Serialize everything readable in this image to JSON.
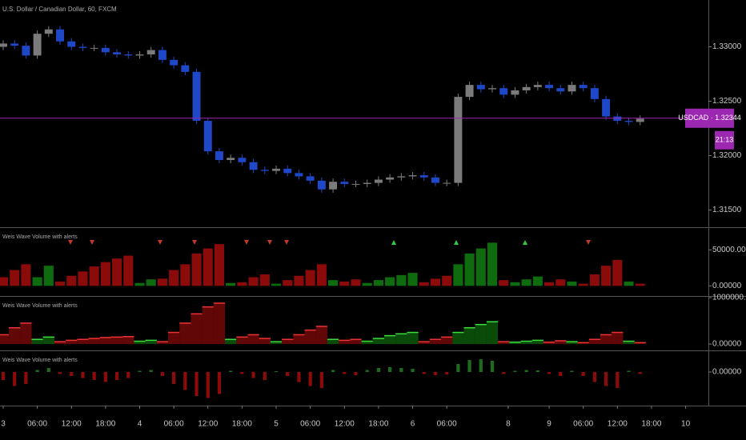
{
  "chart_data": [
    {
      "type": "candlestick",
      "title": "U.S. Dollar / Canadian Dollar, 60, FXCM",
      "up_color": "#7b7b7b",
      "down_color": "#1f48c8",
      "open": [
        1.33,
        1.3303,
        1.3301,
        1.3292,
        1.3312,
        1.3316,
        1.3305,
        1.33,
        1.3299,
        1.3299,
        1.3295,
        1.3293,
        1.3292,
        1.3293,
        1.3297,
        1.3288,
        1.3283,
        1.3277,
        1.3232,
        1.3204,
        1.3196,
        1.3198,
        1.3194,
        1.3187,
        1.3186,
        1.3188,
        1.3184,
        1.3181,
        1.3177,
        1.3169,
        1.3176,
        1.3174,
        1.3174,
        1.3175,
        1.3178,
        1.318,
        1.3181,
        1.3182,
        1.318,
        1.3175,
        1.3175,
        1.3254,
        1.3265,
        1.3261,
        1.3262,
        1.3256,
        1.326,
        1.3263,
        1.3265,
        1.3262,
        1.3259,
        1.3265,
        1.3262,
        1.3252,
        1.3236,
        1.3232,
        1.3231
      ],
      "high": [
        1.3306,
        1.3306,
        1.3304,
        1.3315,
        1.3319,
        1.3319,
        1.3308,
        1.3303,
        1.3302,
        1.3302,
        1.3298,
        1.3296,
        1.3296,
        1.33,
        1.33,
        1.3291,
        1.3286,
        1.328,
        1.3235,
        1.3207,
        1.3201,
        1.3201,
        1.3197,
        1.319,
        1.3191,
        1.3191,
        1.3187,
        1.3184,
        1.318,
        1.3179,
        1.3179,
        1.3177,
        1.3178,
        1.3181,
        1.3183,
        1.3184,
        1.3185,
        1.3185,
        1.3183,
        1.3178,
        1.3257,
        1.3268,
        1.3268,
        1.3265,
        1.3265,
        1.3263,
        1.3266,
        1.3268,
        1.3268,
        1.3265,
        1.3268,
        1.3268,
        1.3265,
        1.3255,
        1.3239,
        1.3235,
        1.3237
      ],
      "low": [
        1.3297,
        1.3298,
        1.3289,
        1.3289,
        1.3309,
        1.3302,
        1.3297,
        1.3296,
        1.3296,
        1.3292,
        1.329,
        1.3289,
        1.3289,
        1.329,
        1.3285,
        1.328,
        1.3274,
        1.3229,
        1.3201,
        1.3193,
        1.3193,
        1.3191,
        1.3184,
        1.3183,
        1.3183,
        1.3181,
        1.3178,
        1.3174,
        1.3166,
        1.3166,
        1.3171,
        1.3171,
        1.3171,
        1.3172,
        1.3175,
        1.3177,
        1.3178,
        1.3177,
        1.3172,
        1.3172,
        1.3172,
        1.3251,
        1.3258,
        1.3258,
        1.3253,
        1.3253,
        1.3257,
        1.326,
        1.3259,
        1.3256,
        1.3256,
        1.3259,
        1.3249,
        1.3233,
        1.3229,
        1.3228,
        1.3228
      ],
      "close": [
        1.3303,
        1.3301,
        1.3292,
        1.3312,
        1.3316,
        1.3305,
        1.33,
        1.3299,
        1.3299,
        1.3295,
        1.3293,
        1.3292,
        1.3293,
        1.3297,
        1.3288,
        1.3283,
        1.3277,
        1.3232,
        1.3204,
        1.3196,
        1.3198,
        1.3194,
        1.3187,
        1.3186,
        1.3188,
        1.3184,
        1.3181,
        1.3177,
        1.3169,
        1.3176,
        1.3174,
        1.3174,
        1.3175,
        1.3178,
        1.318,
        1.3181,
        1.3182,
        1.318,
        1.3175,
        1.3175,
        1.3254,
        1.3265,
        1.3261,
        1.3262,
        1.3256,
        1.326,
        1.3263,
        1.3265,
        1.3262,
        1.3259,
        1.3265,
        1.3262,
        1.3252,
        1.3236,
        1.3232,
        1.3231,
        1.3234
      ],
      "last_price": {
        "value": 1.32344,
        "label": "USDCAD · 1.32344"
      },
      "last_price_color": "#9c27b0",
      "countdown": "21:13",
      "ylim": [
        1.3135,
        1.3343
      ],
      "yticks": [
        {
          "value": 1.315,
          "label": "1.31500"
        },
        {
          "value": 1.32,
          "label": "1.32000"
        },
        {
          "value": 1.325,
          "label": "1.32500"
        },
        {
          "value": 1.33,
          "label": "1.33000"
        }
      ],
      "xlim": [
        -0.28,
        62
      ],
      "xticks": [
        {
          "value": 0,
          "label": "3"
        },
        {
          "value": 3,
          "label": "06:00"
        },
        {
          "value": 6,
          "label": "12:00"
        },
        {
          "value": 9,
          "label": "18:00"
        },
        {
          "value": 12,
          "label": "4"
        },
        {
          "value": 15,
          "label": "06:00"
        },
        {
          "value": 18,
          "label": "12:00"
        },
        {
          "value": 21,
          "label": "18:00"
        },
        {
          "value": 24,
          "label": "5"
        },
        {
          "value": 27,
          "label": "06:00"
        },
        {
          "value": 30,
          "label": "12:00"
        },
        {
          "value": 33,
          "label": "18:00"
        },
        {
          "value": 36,
          "label": "6"
        },
        {
          "value": 39,
          "label": "06:00"
        },
        {
          "value": 44.4,
          "label": "8"
        },
        {
          "value": 48,
          "label": "9"
        },
        {
          "value": 51,
          "label": "06:00"
        },
        {
          "value": 54,
          "label": "12:00"
        },
        {
          "value": 57,
          "label": "18:00"
        },
        {
          "value": 60,
          "label": "10"
        }
      ]
    },
    {
      "type": "bar",
      "title": "Weis Wave Volume with alerts",
      "values": [
        12000,
        22000,
        30000,
        12000,
        28000,
        6000,
        14000,
        20000,
        27000,
        33000,
        38000,
        42000,
        4000,
        9000,
        10000,
        22000,
        30000,
        45000,
        52000,
        58000,
        4000,
        5000,
        12000,
        16000,
        3000,
        8000,
        14000,
        22000,
        30000,
        8000,
        6000,
        9000,
        4000,
        8000,
        12000,
        15000,
        18000,
        5000,
        10000,
        14000,
        30000,
        45000,
        52000,
        60000,
        8000,
        5000,
        9000,
        13000,
        5000,
        9000,
        6000,
        3000,
        16000,
        28000,
        36000,
        6000,
        3000
      ],
      "colors": [
        "#8b0a0a",
        "#8b0a0a",
        "#8b0a0a",
        "#0e6b0e",
        "#0e6b0e",
        "#8b0a0a",
        "#8b0a0a",
        "#8b0a0a",
        "#8b0a0a",
        "#8b0a0a",
        "#8b0a0a",
        "#8b0a0a",
        "#0e6b0e",
        "#0e6b0e",
        "#8b0a0a",
        "#8b0a0a",
        "#8b0a0a",
        "#8b0a0a",
        "#8b0a0a",
        "#8b0a0a",
        "#0e6b0e",
        "#8b0a0a",
        "#8b0a0a",
        "#8b0a0a",
        "#0e6b0e",
        "#8b0a0a",
        "#8b0a0a",
        "#8b0a0a",
        "#8b0a0a",
        "#0e6b0e",
        "#8b0a0a",
        "#8b0a0a",
        "#0e6b0e",
        "#0e6b0e",
        "#0e6b0e",
        "#0e6b0e",
        "#0e6b0e",
        "#8b0a0a",
        "#8b0a0a",
        "#8b0a0a",
        "#0e6b0e",
        "#0e6b0e",
        "#0e6b0e",
        "#0e6b0e",
        "#8b0a0a",
        "#0e6b0e",
        "#0e6b0e",
        "#0e6b0e",
        "#8b0a0a",
        "#8b0a0a",
        "#0e6b0e",
        "#8b0a0a",
        "#8b0a0a",
        "#8b0a0a",
        "#8b0a0a",
        "#0e6b0e",
        "#8b0a0a"
      ],
      "ylim": [
        -13000,
        79300
      ],
      "yticks": [
        {
          "value": 0,
          "label": "0.00000"
        },
        {
          "value": 50000,
          "label": "50000.00000"
        }
      ]
    },
    {
      "type": "area",
      "title": "Weis Wave Volume with alerts",
      "values": [
        200000,
        350000,
        450000,
        100000,
        150000,
        50000,
        80000,
        100000,
        120000,
        140000,
        150000,
        160000,
        60000,
        80000,
        50000,
        250000,
        450000,
        650000,
        800000,
        880000,
        100000,
        150000,
        200000,
        120000,
        50000,
        100000,
        200000,
        300000,
        380000,
        100000,
        80000,
        100000,
        60000,
        120000,
        180000,
        220000,
        250000,
        50000,
        100000,
        150000,
        250000,
        350000,
        420000,
        480000,
        50000,
        40000,
        60000,
        80000,
        40000,
        70000,
        50000,
        30000,
        100000,
        200000,
        250000,
        60000,
        30000
      ],
      "colors": [
        "#8b0a0a",
        "#8b0a0a",
        "#8b0a0a",
        "#0e6b0e",
        "#0e6b0e",
        "#8b0a0a",
        "#8b0a0a",
        "#8b0a0a",
        "#8b0a0a",
        "#8b0a0a",
        "#8b0a0a",
        "#8b0a0a",
        "#0e6b0e",
        "#0e6b0e",
        "#8b0a0a",
        "#8b0a0a",
        "#8b0a0a",
        "#8b0a0a",
        "#8b0a0a",
        "#8b0a0a",
        "#0e6b0e",
        "#8b0a0a",
        "#8b0a0a",
        "#8b0a0a",
        "#0e6b0e",
        "#8b0a0a",
        "#8b0a0a",
        "#8b0a0a",
        "#8b0a0a",
        "#0e6b0e",
        "#8b0a0a",
        "#8b0a0a",
        "#0e6b0e",
        "#0e6b0e",
        "#0e6b0e",
        "#0e6b0e",
        "#0e6b0e",
        "#8b0a0a",
        "#8b0a0a",
        "#8b0a0a",
        "#0e6b0e",
        "#0e6b0e",
        "#0e6b0e",
        "#0e6b0e",
        "#8b0a0a",
        "#0e6b0e",
        "#0e6b0e",
        "#0e6b0e",
        "#8b0a0a",
        "#8b0a0a",
        "#0e6b0e",
        "#8b0a0a",
        "#8b0a0a",
        "#8b0a0a",
        "#8b0a0a",
        "#0e6b0e",
        "#8b0a0a"
      ],
      "ylim": [
        -120000,
        1000000
      ],
      "yticks": [
        {
          "value": 0,
          "label": "0.00000"
        },
        {
          "value": 1000000,
          "label": "1000000.00000"
        }
      ]
    },
    {
      "type": "bar",
      "title": "Weis Wave Volume with alerts",
      "up_color": "#1d6b1d",
      "down_color": "#8b0a0a",
      "values": [
        -0.2,
        -0.35,
        -0.3,
        0.05,
        0.1,
        -0.05,
        -0.1,
        -0.15,
        -0.2,
        -0.25,
        -0.2,
        -0.15,
        0.03,
        0.05,
        -0.1,
        -0.3,
        -0.45,
        -0.6,
        -0.65,
        -0.55,
        0.03,
        -0.05,
        -0.15,
        -0.2,
        0.02,
        -0.1,
        -0.25,
        -0.35,
        -0.4,
        0.05,
        -0.05,
        -0.08,
        0.05,
        0.1,
        0.12,
        0.1,
        0.08,
        -0.05,
        -0.08,
        -0.06,
        0.2,
        0.3,
        0.32,
        0.28,
        -0.05,
        0.03,
        0.05,
        0.04,
        -0.05,
        -0.1,
        0.03,
        -0.1,
        -0.25,
        -0.35,
        -0.4,
        0.03,
        -0.05
      ],
      "ylim": [
        -0.8,
        0.5
      ],
      "yticks": [
        {
          "value": 0,
          "label": "0.00000"
        }
      ]
    }
  ]
}
